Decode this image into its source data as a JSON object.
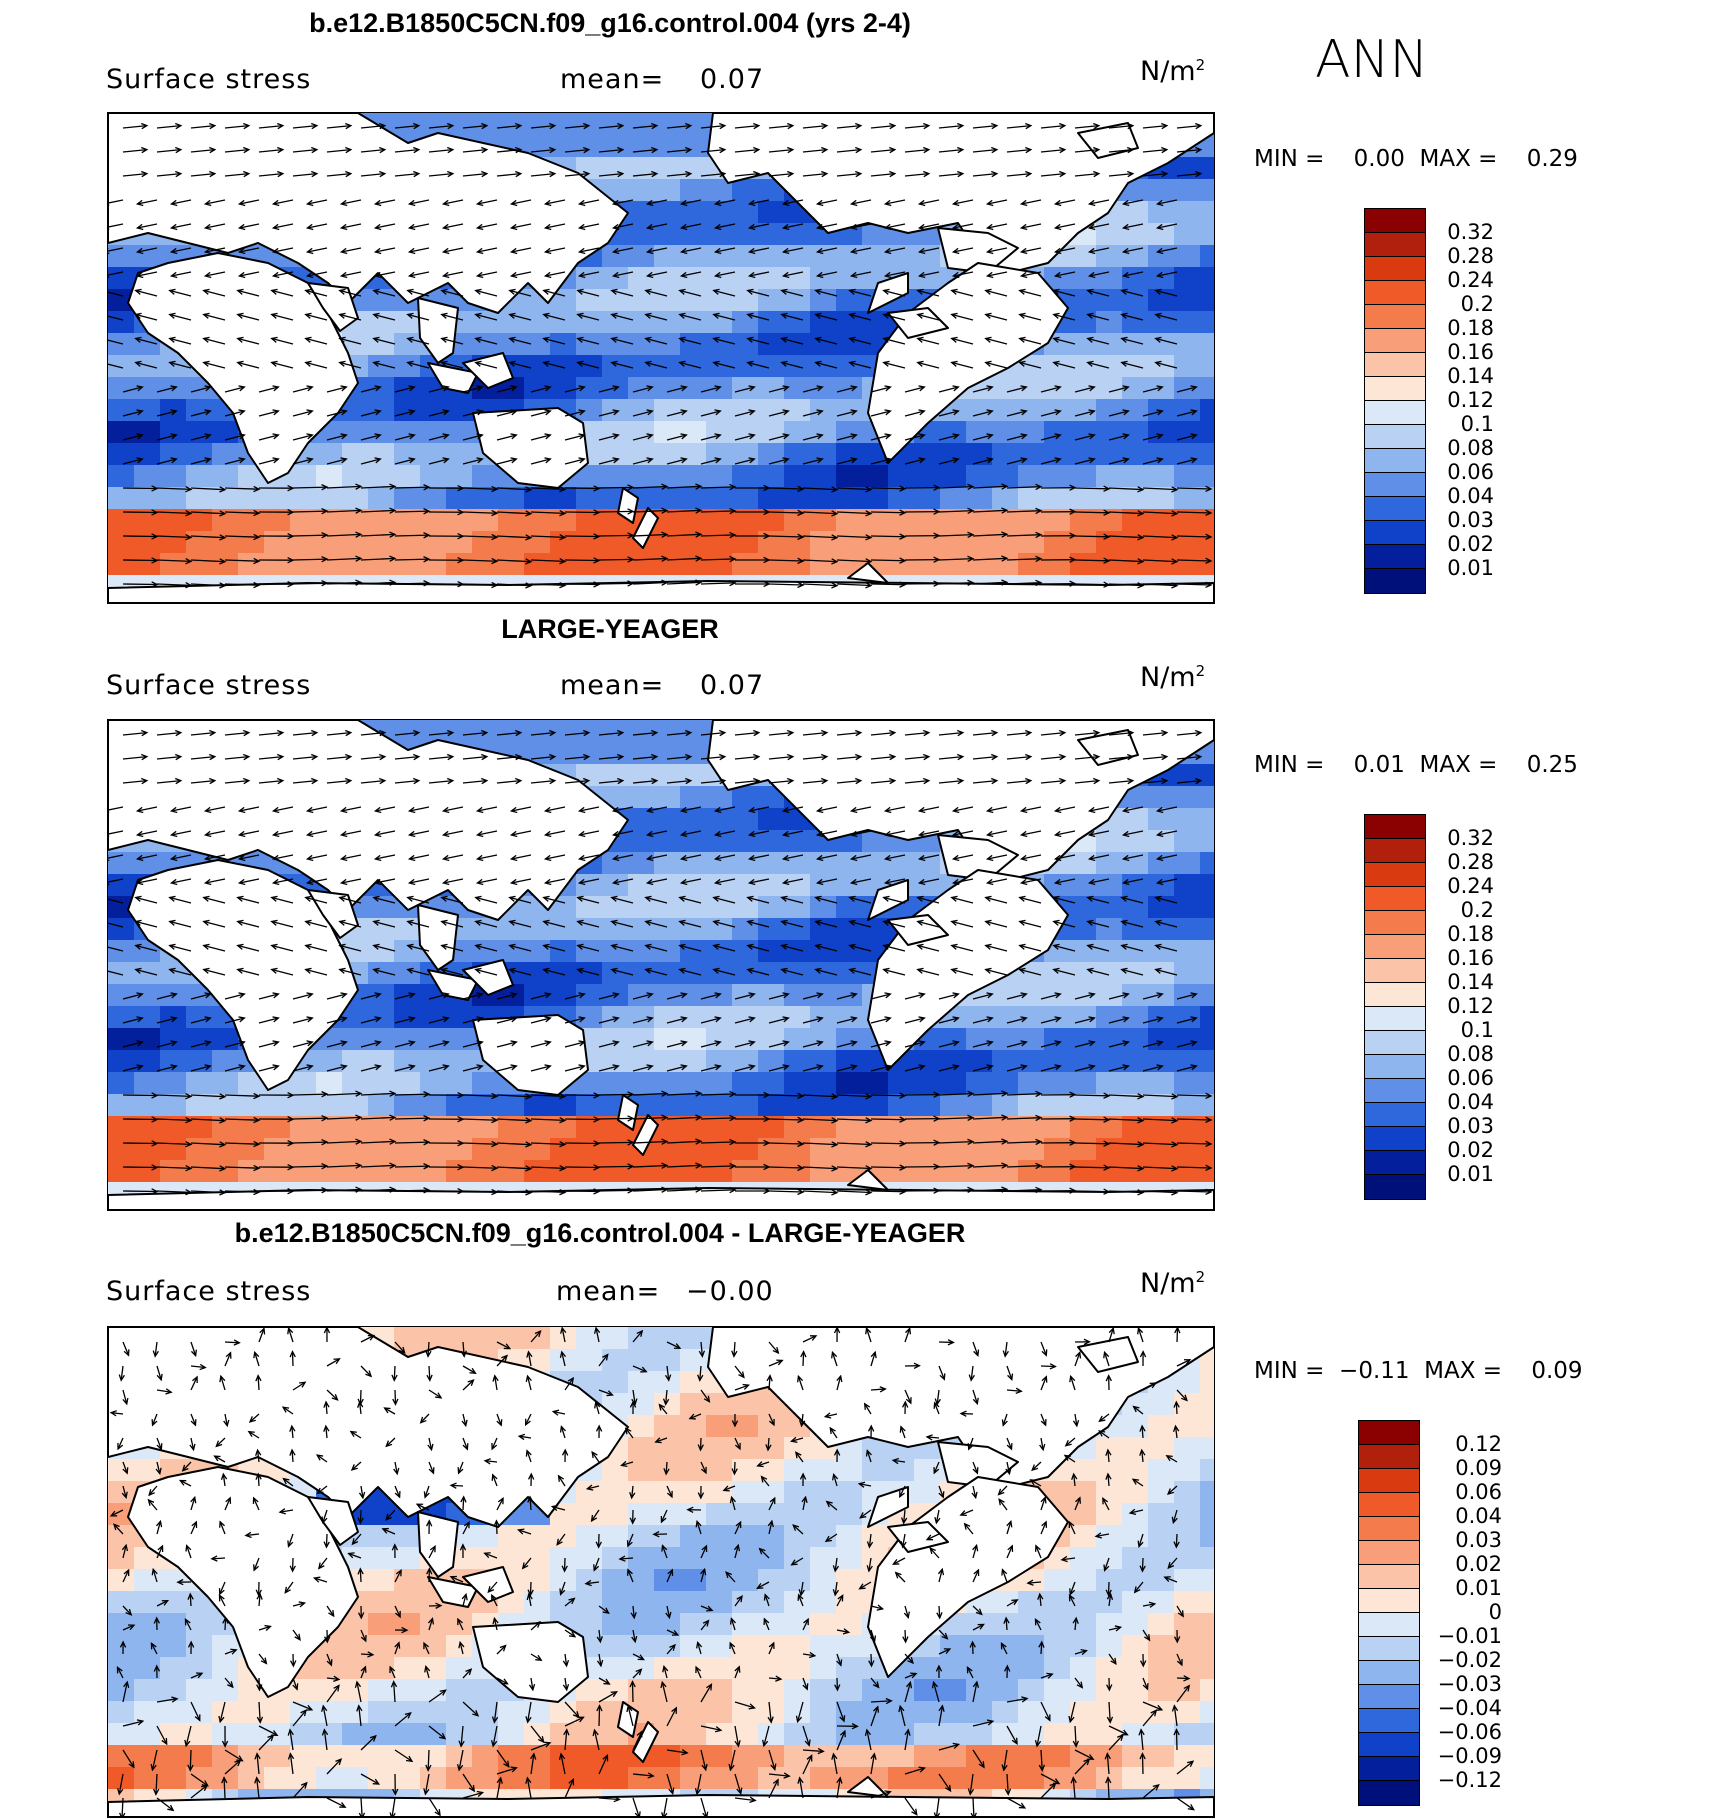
{
  "season": "ANN",
  "panels": [
    {
      "title": "b.e12.B1850C5CN.f09_g16.control.004 (yrs 2-4)",
      "field_label": "Surface stress",
      "mean_label": "mean=",
      "mean_value": "0.07",
      "units": "N/m",
      "units_exp": "2",
      "min_label": "MIN =",
      "min_value": "0.00",
      "max_label": "MAX =",
      "max_value": "0.29",
      "levels": [
        "0.32",
        "0.28",
        "0.24",
        "0.2",
        "0.18",
        "0.16",
        "0.14",
        "0.12",
        "0.1",
        "0.08",
        "0.06",
        "0.04",
        "0.03",
        "0.02",
        "0.01"
      ],
      "colors": [
        "#8b0000",
        "#b0200c",
        "#d93a10",
        "#ef5a28",
        "#f47c4c",
        "#f89e78",
        "#fbc3a8",
        "#fde6d6",
        "#dbe8f8",
        "#b9d2f4",
        "#8fb5ee",
        "#5f8fe6",
        "#2f67dc",
        "#0f42c8",
        "#041f9c",
        "#00107a"
      ],
      "map_kind": "mean"
    },
    {
      "title": "LARGE-YEAGER",
      "field_label": "Surface stress",
      "mean_label": "mean=",
      "mean_value": "0.07",
      "units": "N/m",
      "units_exp": "2",
      "min_label": "MIN =",
      "min_value": "0.01",
      "max_label": "MAX =",
      "max_value": "0.25",
      "levels": [
        "0.32",
        "0.28",
        "0.24",
        "0.2",
        "0.18",
        "0.16",
        "0.14",
        "0.12",
        "0.1",
        "0.08",
        "0.06",
        "0.04",
        "0.03",
        "0.02",
        "0.01"
      ],
      "colors": [
        "#8b0000",
        "#b0200c",
        "#d93a10",
        "#ef5a28",
        "#f47c4c",
        "#f89e78",
        "#fbc3a8",
        "#fde6d6",
        "#dbe8f8",
        "#b9d2f4",
        "#8fb5ee",
        "#5f8fe6",
        "#2f67dc",
        "#0f42c8",
        "#041f9c",
        "#00107a"
      ],
      "map_kind": "mean"
    },
    {
      "title": "b.e12.B1850C5CN.f09_g16.control.004 - LARGE-YEAGER",
      "field_label": "Surface stress",
      "mean_label": "mean=",
      "mean_value": "−0.00",
      "units": "N/m",
      "units_exp": "2",
      "min_label": "MIN =",
      "min_value": "−0.11",
      "max_label": "MAX =",
      "max_value": "0.09",
      "levels": [
        "0.12",
        "0.09",
        "0.06",
        "0.04",
        "0.03",
        "0.02",
        "0.01",
        "0",
        "−0.01",
        "−0.02",
        "−0.03",
        "−0.04",
        "−0.06",
        "−0.09",
        "−0.12"
      ],
      "colors": [
        "#8b0000",
        "#b0200c",
        "#d93a10",
        "#ef5a28",
        "#f47c4c",
        "#f89e78",
        "#fbc3a8",
        "#fde6d6",
        "#dbe8f8",
        "#b9d2f4",
        "#8fb5ee",
        "#5f8fe6",
        "#2f67dc",
        "#0f42c8",
        "#041f9c",
        "#00107a"
      ],
      "map_kind": "diff"
    }
  ]
}
